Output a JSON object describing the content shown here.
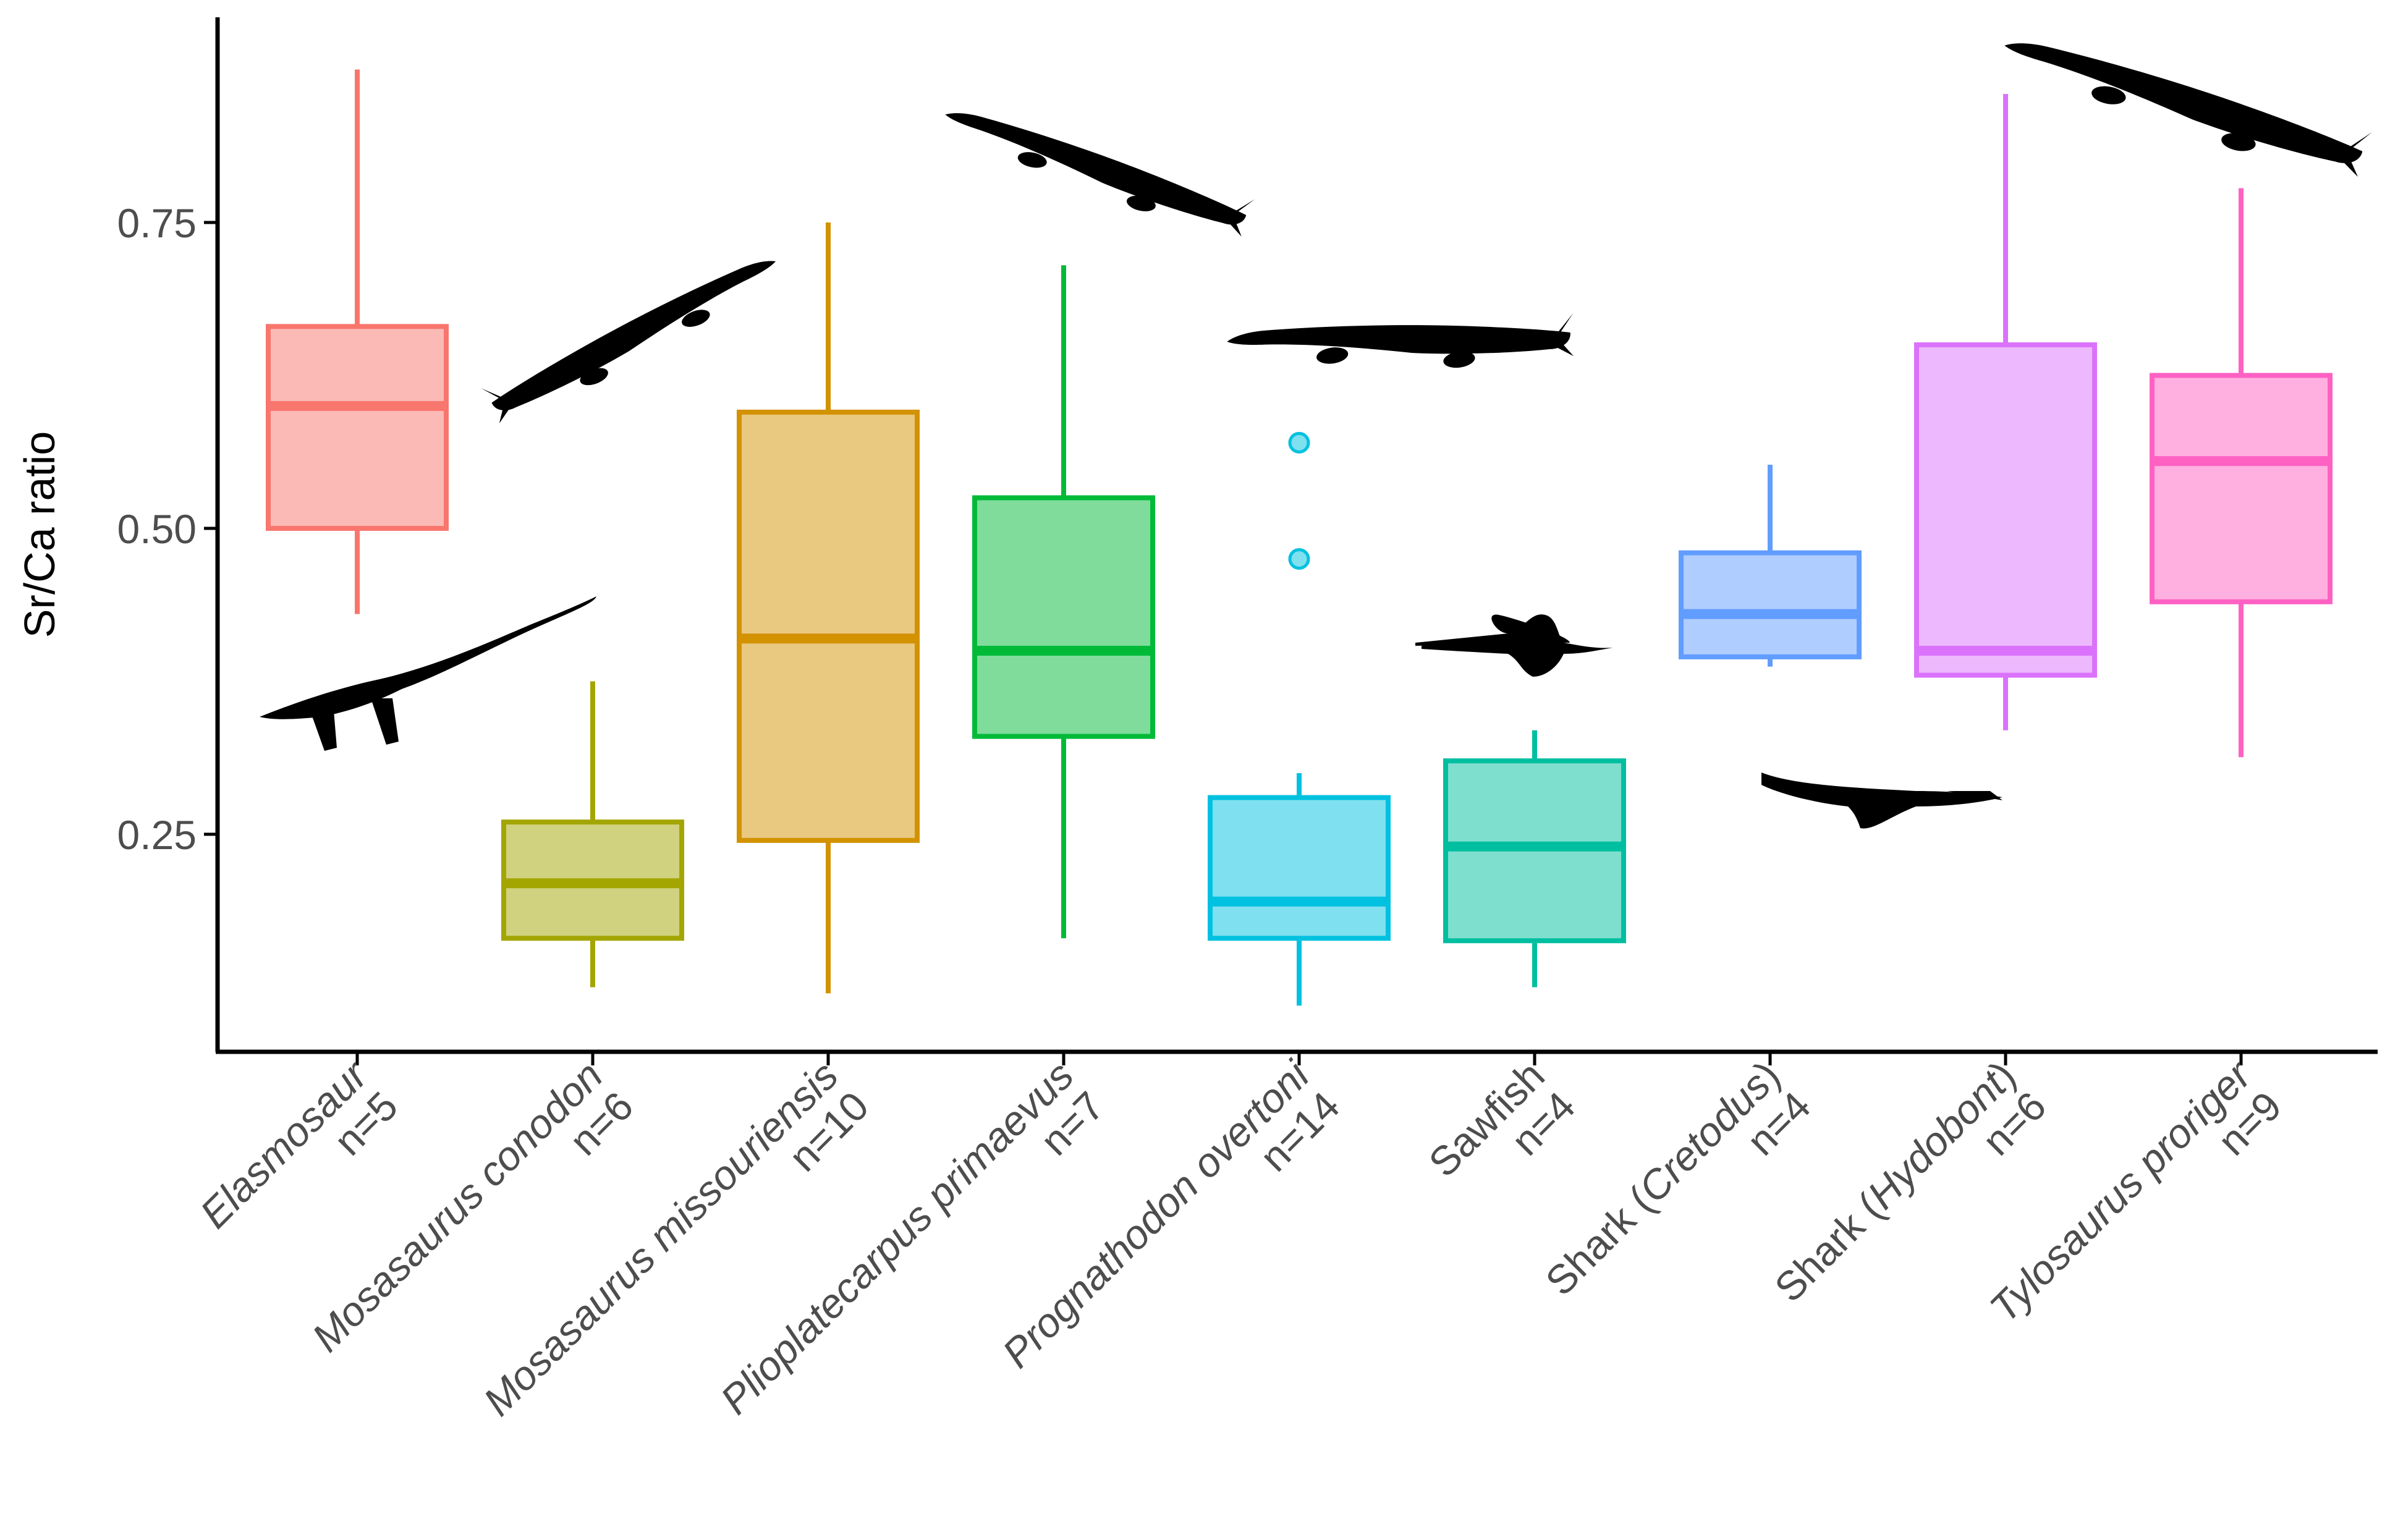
{
  "chart_data": {
    "type": "boxplot",
    "title": "",
    "xlabel": "",
    "ylabel": "Sr/Ca ratio",
    "ylim": [
      0.08,
      0.92
    ],
    "yticks": [
      0.25,
      0.5,
      0.75
    ],
    "ytick_labels": [
      "0.25",
      "0.50",
      "0.75"
    ],
    "grid": false,
    "legend": "none",
    "categories": [
      {
        "name": "Elasmosaur",
        "n_label": "n=5",
        "italic_parts": [
          [
            "Elasmosaur",
            true
          ]
        ],
        "color": "#F8766D",
        "min": 0.43,
        "q1": 0.5,
        "median": 0.6,
        "q3": 0.665,
        "max": 0.875,
        "outliers": []
      },
      {
        "name": "Mosasaurus conodon",
        "n_label": "n=6",
        "italic_parts": [
          [
            "Mosasaurus conodon",
            true
          ]
        ],
        "color": "#A3A500",
        "min": 0.125,
        "q1": 0.165,
        "median": 0.21,
        "q3": 0.26,
        "max": 0.375,
        "outliers": []
      },
      {
        "name": "Mosasaurus missouriensis",
        "n_label": "n=10",
        "italic_parts": [
          [
            "Mosasaurus missouriensis",
            true
          ]
        ],
        "color": "#D39200",
        "min": 0.12,
        "q1": 0.245,
        "median": 0.41,
        "q3": 0.595,
        "max": 0.75,
        "outliers": []
      },
      {
        "name": "Plioplatecarpus primaevus",
        "n_label": "n=7",
        "italic_parts": [
          [
            "Plioplatecarpus primaevus",
            true
          ]
        ],
        "color": "#00BA38",
        "min": 0.165,
        "q1": 0.33,
        "median": 0.4,
        "q3": 0.525,
        "max": 0.715,
        "outliers": []
      },
      {
        "name": "Prognathodon overtoni",
        "n_label": "n=14",
        "italic_parts": [
          [
            "Prognathodon overtoni",
            true
          ]
        ],
        "color": "#00C1E0",
        "min": 0.11,
        "q1": 0.165,
        "median": 0.195,
        "q3": 0.28,
        "max": 0.3,
        "outliers": [
          0.475,
          0.57
        ]
      },
      {
        "name": "Sawfish",
        "n_label": "n=4",
        "italic_parts": [
          [
            "Sawfish",
            false
          ]
        ],
        "color": "#00BFA0",
        "min": 0.125,
        "q1": 0.163,
        "median": 0.24,
        "q3": 0.31,
        "max": 0.335,
        "outliers": []
      },
      {
        "name": "Shark (Cretodus)",
        "n_label": "n=4",
        "italic_parts": [
          [
            "Shark (",
            false
          ],
          [
            "Cretodus",
            true
          ],
          [
            ")",
            false
          ]
        ],
        "color": "#619CFF",
        "min": 0.387,
        "q1": 0.395,
        "median": 0.43,
        "q3": 0.48,
        "max": 0.552,
        "outliers": []
      },
      {
        "name": "Shark (Hydobont)",
        "n_label": "n=6",
        "italic_parts": [
          [
            "Shark (",
            false
          ],
          [
            "Hydobont",
            true
          ],
          [
            ")",
            false
          ]
        ],
        "color": "#DB72FB",
        "min": 0.335,
        "q1": 0.38,
        "median": 0.4,
        "q3": 0.65,
        "max": 0.855,
        "outliers": []
      },
      {
        "name": "Tylosaurus proriger",
        "n_label": "n=9",
        "italic_parts": [
          [
            "Tylosaurus proriger",
            true
          ]
        ],
        "color": "#FF61C3",
        "min": 0.313,
        "q1": 0.44,
        "median": 0.555,
        "q3": 0.625,
        "max": 0.778,
        "outliers": []
      }
    ],
    "silhouettes": [
      "elasmosaur-silhouette",
      "mosasaur-silhouette",
      "mosasaur-silhouette",
      "mosasaur-silhouette",
      "mosasaur-silhouette",
      "sawfish-silhouette",
      "shark-silhouette",
      "mosasaur-silhouette"
    ]
  }
}
